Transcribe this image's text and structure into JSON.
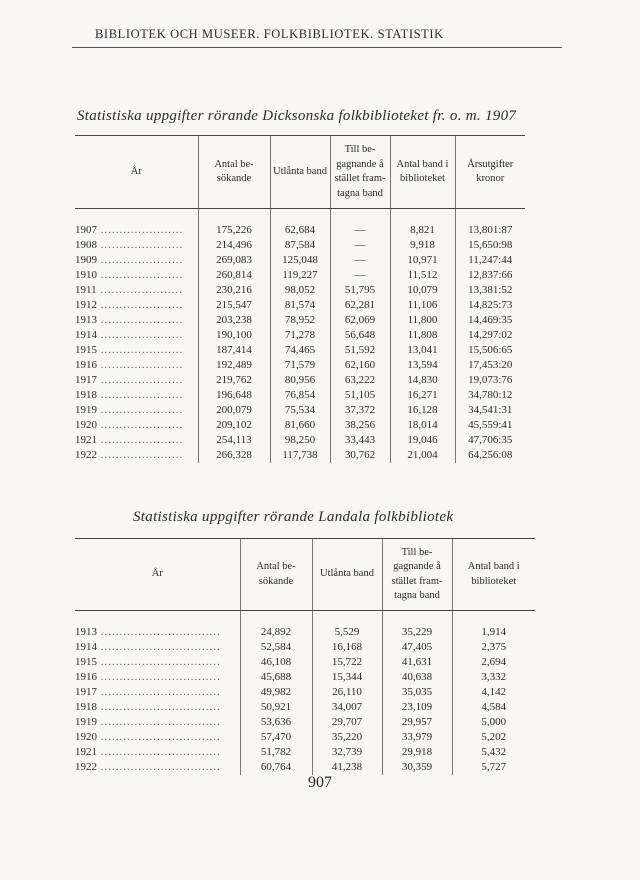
{
  "running_head": "BIBLIOTEK OCH MUSEER.  FOLKBIBLIOTEK.  STATISTIK",
  "table1": {
    "title": "Statistiska uppgifter rörande Dicksonska folkbiblioteket fr. o. m. 1907",
    "headers": [
      "År",
      "Antal be-sökande",
      "Utlånta band",
      "Till be-gagnande å stället fram-tagna band",
      "Antal band i biblioteket",
      "Årsutgifter kronor"
    ],
    "rows": [
      [
        "1907",
        "175,226",
        "62,684",
        "—",
        "8,821",
        "13,801:87"
      ],
      [
        "1908",
        "214,496",
        "87,584",
        "—",
        "9,918",
        "15,650:98"
      ],
      [
        "1909",
        "269,083",
        "125,048",
        "—",
        "10,971",
        "11,247:44"
      ],
      [
        "1910",
        "260,814",
        "119,227",
        "—",
        "11,512",
        "12,837:66"
      ],
      [
        "1911",
        "230,216",
        "98,052",
        "51,795",
        "10,079",
        "13,381:52"
      ],
      [
        "1912",
        "215,547",
        "81,574",
        "62,281",
        "11,106",
        "14,825:73"
      ],
      [
        "1913",
        "203,238",
        "78,952",
        "62,069",
        "11,800",
        "14,469:35"
      ],
      [
        "1914",
        "190,100",
        "71,278",
        "56,648",
        "11,808",
        "14,297:02"
      ],
      [
        "1915",
        "187,414",
        "74,465",
        "51,592",
        "13,041",
        "15,506:65"
      ],
      [
        "1916",
        "192,489",
        "71,579",
        "62,160",
        "13,594",
        "17,453:20"
      ],
      [
        "1917",
        "219,762",
        "80,956",
        "63,222",
        "14,830",
        "19,073:76"
      ],
      [
        "1918",
        "196,648",
        "76,854",
        "51,105",
        "16,271",
        "34,780:12"
      ],
      [
        "1919",
        "200,079",
        "75,534",
        "37,372",
        "16,128",
        "34,541:31"
      ],
      [
        "1920",
        "209,102",
        "81,660",
        "38,256",
        "18,014",
        "45,559:41"
      ],
      [
        "1921",
        "254,113",
        "98,250",
        "33,443",
        "19,046",
        "47,706:35"
      ],
      [
        "1922",
        "266,328",
        "117,738",
        "30,762",
        "21,004",
        "64,256:08"
      ]
    ]
  },
  "table2": {
    "title": "Statistiska uppgifter rörande Landala folkbibliotek",
    "headers": [
      "År",
      "Antal be-sökande",
      "Utlånta band",
      "Till be-gagnande å stället fram-tagna band",
      "Antal band i biblioteket"
    ],
    "rows": [
      [
        "1913",
        "24,892",
        "5,529",
        "35,229",
        "1,914"
      ],
      [
        "1914",
        "52,584",
        "16,168",
        "47,405",
        "2,375"
      ],
      [
        "1915",
        "46,108",
        "15,722",
        "41,631",
        "2,694"
      ],
      [
        "1916",
        "45,688",
        "15,344",
        "40,638",
        "3,332"
      ],
      [
        "1917",
        "49,982",
        "26,110",
        "35,035",
        "4,142"
      ],
      [
        "1918",
        "50,921",
        "34,007",
        "23,109",
        "4,584"
      ],
      [
        "1919",
        "53,636",
        "29,707",
        "29,957",
        "5,000"
      ],
      [
        "1920",
        "57,470",
        "35,220",
        "33,979",
        "5,202"
      ],
      [
        "1921",
        "51,782",
        "32,739",
        "29,918",
        "5,432"
      ],
      [
        "1922",
        "60,764",
        "41,238",
        "30,359",
        "5,727"
      ]
    ]
  },
  "page_number": "907"
}
